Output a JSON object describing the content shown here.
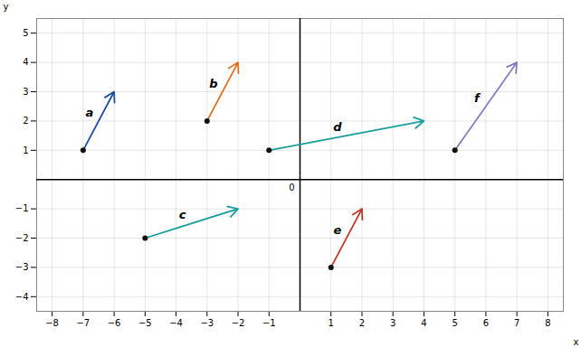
{
  "chart_data": {
    "type": "vector",
    "xlabel": "x",
    "ylabel": "y",
    "xlim": [
      -8.5,
      8.5
    ],
    "ylim": [
      -4.5,
      5.5
    ],
    "xticks": [
      -8,
      -7,
      -6,
      -5,
      -4,
      -3,
      -2,
      -1,
      1,
      2,
      3,
      4,
      5,
      6,
      7,
      8
    ],
    "yticks": [
      -4,
      -3,
      -2,
      -1,
      1,
      2,
      3,
      4,
      5
    ],
    "grid": true,
    "dot_color": "#111111",
    "vectors": [
      {
        "label": "a",
        "start": [
          -7,
          1
        ],
        "end": [
          -6,
          3
        ],
        "color": "#1f4e9e"
      },
      {
        "label": "b",
        "start": [
          -3,
          2
        ],
        "end": [
          -2,
          4
        ],
        "color": "#e07020"
      },
      {
        "label": "c",
        "start": [
          -5,
          -2
        ],
        "end": [
          -2,
          -1
        ],
        "color": "#1a9e9e"
      },
      {
        "label": "d",
        "start": [
          -1,
          1
        ],
        "end": [
          4,
          2
        ],
        "color": "#1a9e9e"
      },
      {
        "label": "e",
        "start": [
          1,
          -3
        ],
        "end": [
          2,
          -1
        ],
        "color": "#c0392b"
      },
      {
        "label": "f",
        "start": [
          5,
          1
        ],
        "end": [
          7,
          4
        ],
        "color": "#8080c0"
      }
    ],
    "annotations": [
      {
        "text": "0",
        "x": 0,
        "y": 0
      }
    ]
  }
}
